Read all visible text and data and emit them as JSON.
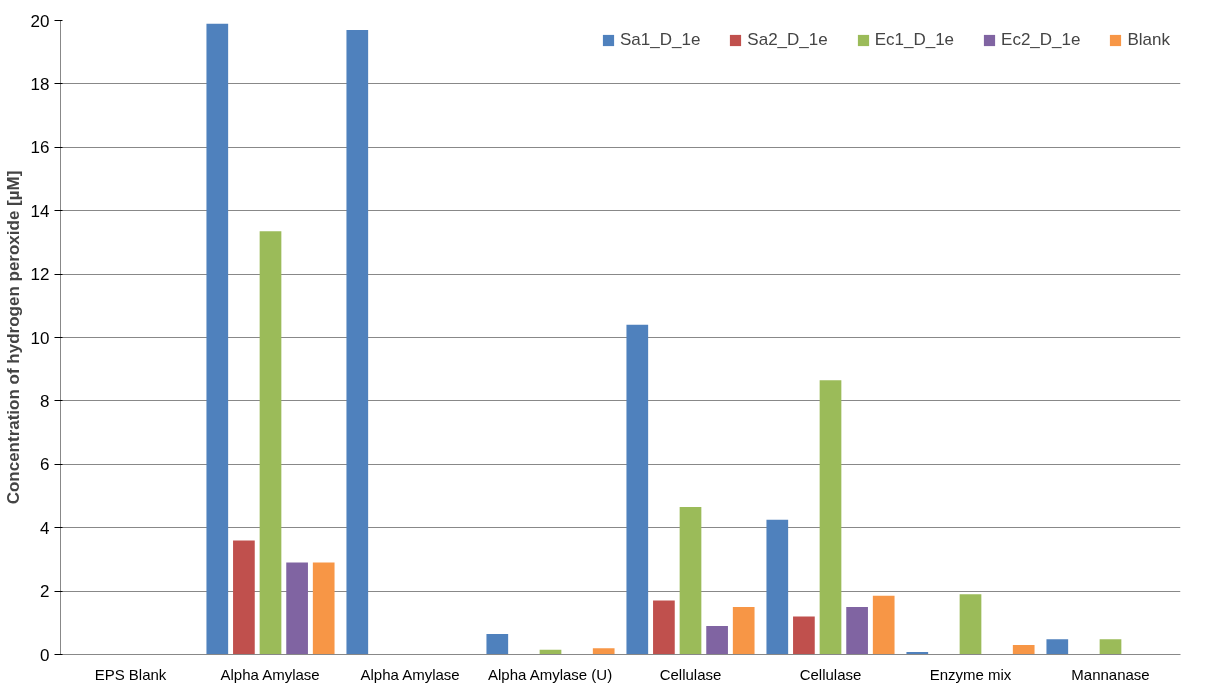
{
  "chart_data": {
    "type": "bar",
    "ylabel": "Concentration of hydrogen peroxide [µM]",
    "categories": [
      "EPS Blank",
      "Alpha Amylase",
      "Alpha Amylase",
      "Alpha Amylase (U)",
      "Cellulase",
      "Cellulase",
      "Enzyme mix",
      "Mannanase"
    ],
    "series": [
      {
        "name": "Sa1_D_1e",
        "color": "#4f81bd",
        "values": [
          0,
          19.9,
          19.7,
          0.65,
          10.4,
          4.25,
          0.08,
          0.48
        ]
      },
      {
        "name": "Sa2_D_1e",
        "color": "#c0504d",
        "values": [
          0,
          3.6,
          0,
          0,
          1.7,
          1.2,
          0,
          0
        ]
      },
      {
        "name": "Ec1_D_1e",
        "color": "#9bbb59",
        "values": [
          0,
          13.35,
          0,
          0.15,
          4.65,
          8.65,
          1.9,
          0.48
        ]
      },
      {
        "name": "Ec2_D_1e",
        "color": "#8064a2",
        "values": [
          0,
          2.9,
          0,
          0,
          0.9,
          1.5,
          0,
          0
        ]
      },
      {
        "name": "Blank",
        "color": "#f79646",
        "values": [
          0,
          2.9,
          0,
          0.2,
          1.5,
          1.85,
          0.3,
          0
        ]
      }
    ],
    "ylim": [
      0,
      20
    ],
    "yticks": [
      0,
      2,
      4,
      6,
      8,
      10,
      12,
      14,
      16,
      18,
      20
    ],
    "grid": "y",
    "legend": "top right"
  }
}
